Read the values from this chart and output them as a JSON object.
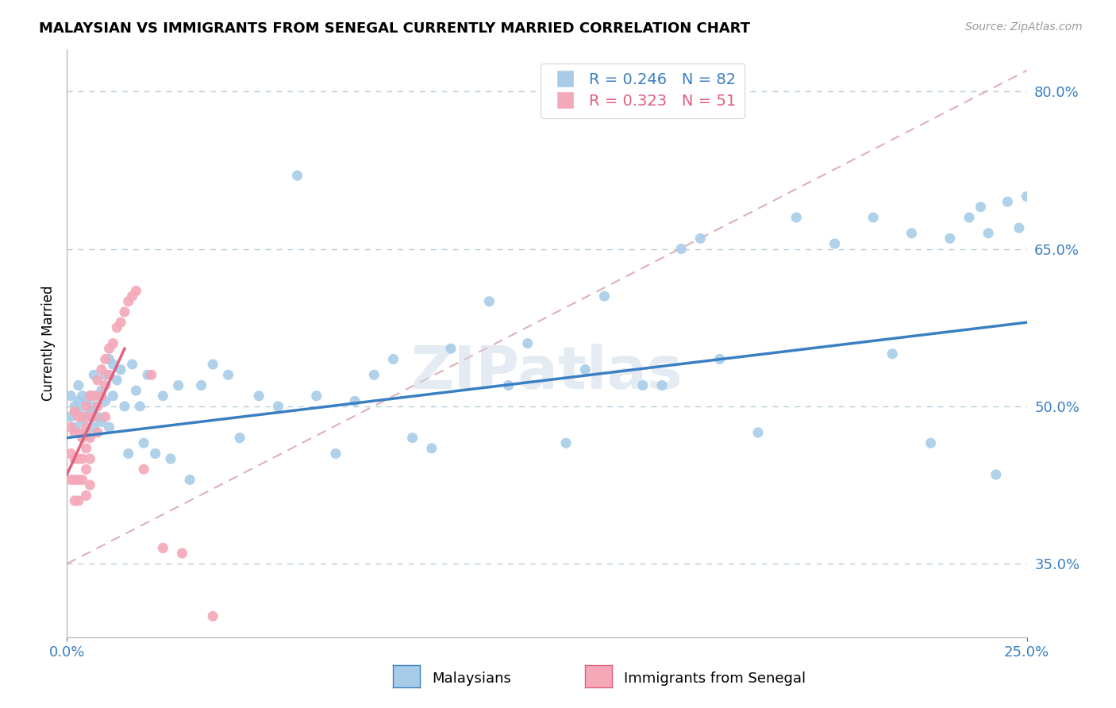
{
  "title": "MALAYSIAN VS IMMIGRANTS FROM SENEGAL CURRENTLY MARRIED CORRELATION CHART",
  "source_text": "Source: ZipAtlas.com",
  "ylabel": "Currently Married",
  "legend_labels": [
    "Malaysians",
    "Immigrants from Senegal"
  ],
  "R_blue": 0.246,
  "N_blue": 82,
  "R_pink": 0.323,
  "N_pink": 51,
  "blue_color": "#a8cce8",
  "pink_color": "#f4a8b8",
  "blue_line_color": "#3a7fc1",
  "pink_line_color": "#e06080",
  "ref_line_color": "#e0b0b8",
  "grid_color": "#b8ccd8",
  "watermark": "ZIPatlas",
  "xlim": [
    0.0,
    0.25
  ],
  "ylim": [
    0.28,
    0.84
  ],
  "yticks": [
    0.35,
    0.5,
    0.65,
    0.8
  ],
  "xticks": [
    0.0,
    0.25
  ],
  "blue_x": [
    0.001,
    0.001,
    0.002,
    0.002,
    0.003,
    0.003,
    0.003,
    0.004,
    0.004,
    0.005,
    0.005,
    0.005,
    0.006,
    0.006,
    0.007,
    0.007,
    0.007,
    0.008,
    0.008,
    0.009,
    0.009,
    0.01,
    0.01,
    0.011,
    0.011,
    0.012,
    0.012,
    0.013,
    0.014,
    0.015,
    0.016,
    0.017,
    0.018,
    0.019,
    0.02,
    0.021,
    0.023,
    0.025,
    0.027,
    0.029,
    0.032,
    0.035,
    0.038,
    0.042,
    0.045,
    0.05,
    0.055,
    0.06,
    0.065,
    0.07,
    0.075,
    0.08,
    0.085,
    0.09,
    0.095,
    0.1,
    0.11,
    0.115,
    0.12,
    0.13,
    0.135,
    0.14,
    0.15,
    0.155,
    0.16,
    0.165,
    0.17,
    0.18,
    0.19,
    0.2,
    0.21,
    0.215,
    0.22,
    0.225,
    0.23,
    0.235,
    0.238,
    0.24,
    0.242,
    0.245,
    0.248,
    0.25
  ],
  "blue_y": [
    0.49,
    0.51,
    0.48,
    0.5,
    0.495,
    0.505,
    0.52,
    0.485,
    0.51,
    0.49,
    0.505,
    0.475,
    0.51,
    0.495,
    0.53,
    0.5,
    0.48,
    0.51,
    0.49,
    0.515,
    0.485,
    0.53,
    0.505,
    0.545,
    0.48,
    0.54,
    0.51,
    0.525,
    0.535,
    0.5,
    0.455,
    0.54,
    0.515,
    0.5,
    0.465,
    0.53,
    0.455,
    0.51,
    0.45,
    0.52,
    0.43,
    0.52,
    0.54,
    0.53,
    0.47,
    0.51,
    0.5,
    0.72,
    0.51,
    0.455,
    0.505,
    0.53,
    0.545,
    0.47,
    0.46,
    0.555,
    0.6,
    0.52,
    0.56,
    0.465,
    0.535,
    0.605,
    0.52,
    0.52,
    0.65,
    0.66,
    0.545,
    0.475,
    0.68,
    0.655,
    0.68,
    0.55,
    0.665,
    0.465,
    0.66,
    0.68,
    0.69,
    0.665,
    0.435,
    0.695,
    0.67,
    0.7
  ],
  "pink_x": [
    0.001,
    0.001,
    0.001,
    0.002,
    0.002,
    0.002,
    0.002,
    0.002,
    0.003,
    0.003,
    0.003,
    0.003,
    0.003,
    0.004,
    0.004,
    0.004,
    0.004,
    0.005,
    0.005,
    0.005,
    0.005,
    0.005,
    0.006,
    0.006,
    0.006,
    0.006,
    0.006,
    0.007,
    0.007,
    0.008,
    0.008,
    0.008,
    0.009,
    0.009,
    0.01,
    0.01,
    0.01,
    0.011,
    0.011,
    0.012,
    0.013,
    0.014,
    0.015,
    0.016,
    0.017,
    0.018,
    0.02,
    0.022,
    0.025,
    0.03,
    0.038
  ],
  "pink_y": [
    0.48,
    0.455,
    0.43,
    0.495,
    0.475,
    0.45,
    0.43,
    0.41,
    0.49,
    0.475,
    0.45,
    0.43,
    0.41,
    0.49,
    0.47,
    0.45,
    0.43,
    0.5,
    0.48,
    0.46,
    0.44,
    0.415,
    0.51,
    0.49,
    0.47,
    0.45,
    0.425,
    0.51,
    0.49,
    0.525,
    0.5,
    0.475,
    0.535,
    0.51,
    0.545,
    0.52,
    0.49,
    0.555,
    0.53,
    0.56,
    0.575,
    0.58,
    0.59,
    0.6,
    0.605,
    0.61,
    0.44,
    0.53,
    0.365,
    0.36,
    0.3
  ]
}
